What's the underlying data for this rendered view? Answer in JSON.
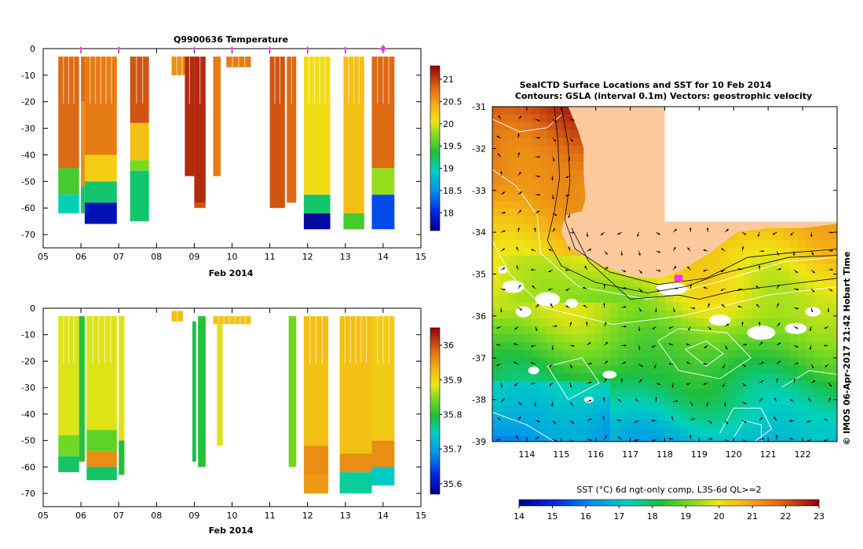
{
  "chart_data": [
    {
      "id": "temp",
      "type": "heatmap",
      "title": "Q9900636  Temperature",
      "xlabel": "Feb 2014",
      "x_ticks": [
        "05",
        "06",
        "07",
        "08",
        "09",
        "10",
        "11",
        "12",
        "13",
        "14",
        "15"
      ],
      "xlim": [
        5,
        15
      ],
      "ylim": [
        -75,
        0
      ],
      "y_ticks": [
        0,
        -10,
        -20,
        -30,
        -40,
        -50,
        -60,
        -70
      ],
      "profile_markers": [
        6,
        7,
        9,
        10,
        11,
        12,
        13,
        14
      ],
      "current_marker": 14,
      "colorbar": {
        "min": 17.6,
        "max": 21.3,
        "ticks": [
          18,
          18.5,
          19,
          19.5,
          20,
          20.5,
          21
        ]
      },
      "profiles": [
        {
          "x0": 5.4,
          "x1": 5.95,
          "segments": [
            [
              -3,
              -45,
              20.8
            ],
            [
              -45,
              -55,
              19.5
            ],
            [
              -55,
              -62,
              19.0
            ]
          ]
        },
        {
          "x0": 6.0,
          "x1": 6.1,
          "segments": [
            [
              -3,
              -20,
              20.8
            ],
            [
              -20,
              -52,
              20.6
            ],
            [
              -52,
              -62,
              19.2
            ]
          ]
        },
        {
          "x0": 6.1,
          "x1": 6.95,
          "segments": [
            [
              -3,
              -40,
              20.7
            ],
            [
              -40,
              -50,
              20.2
            ],
            [
              -50,
              -58,
              19.2
            ],
            [
              -58,
              -66,
              17.8
            ]
          ]
        },
        {
          "x0": 7.3,
          "x1": 7.8,
          "segments": [
            [
              -3,
              -28,
              20.9
            ],
            [
              -28,
              -42,
              20.3
            ],
            [
              -42,
              -46,
              19.7
            ],
            [
              -46,
              -65,
              19.2
            ]
          ]
        },
        {
          "x0": 8.4,
          "x1": 8.95,
          "segments": [
            [
              -3,
              -10,
              20.6
            ]
          ]
        },
        {
          "x0": 8.75,
          "x1": 9.0,
          "segments": [
            [
              -3,
              -48,
              21.1
            ]
          ]
        },
        {
          "x0": 9.0,
          "x1": 9.3,
          "segments": [
            [
              -3,
              -58,
              21.1
            ],
            [
              -58,
              -60,
              20.9
            ]
          ]
        },
        {
          "x0": 9.5,
          "x1": 9.7,
          "segments": [
            [
              -3,
              -48,
              20.7
            ]
          ]
        },
        {
          "x0": 9.85,
          "x1": 10.5,
          "segments": [
            [
              -3,
              -7,
              20.7
            ]
          ]
        },
        {
          "x0": 11.0,
          "x1": 11.4,
          "segments": [
            [
              -3,
              -60,
              20.9
            ]
          ]
        },
        {
          "x0": 11.45,
          "x1": 11.7,
          "segments": [
            [
              -3,
              -58,
              20.8
            ]
          ]
        },
        {
          "x0": 11.9,
          "x1": 12.6,
          "segments": [
            [
              -3,
              -55,
              20.1
            ],
            [
              -55,
              -62,
              19.2
            ],
            [
              -62,
              -68,
              17.7
            ]
          ]
        },
        {
          "x0": 12.95,
          "x1": 13.5,
          "segments": [
            [
              -3,
              -62,
              20.3
            ],
            [
              -62,
              -68,
              19.5
            ]
          ]
        },
        {
          "x0": 13.7,
          "x1": 14.3,
          "segments": [
            [
              -3,
              -45,
              20.8
            ],
            [
              -45,
              -55,
              19.8
            ],
            [
              -55,
              -68,
              18.2
            ]
          ]
        }
      ]
    },
    {
      "id": "sal",
      "type": "heatmap",
      "title": "",
      "xlabel": "Feb 2014",
      "x_ticks": [
        "05",
        "06",
        "07",
        "08",
        "09",
        "10",
        "11",
        "12",
        "13",
        "14",
        "15"
      ],
      "xlim": [
        5,
        15
      ],
      "ylim": [
        -75,
        0
      ],
      "y_ticks": [
        0,
        -10,
        -20,
        -30,
        -40,
        -50,
        -60,
        -70
      ],
      "colorbar": {
        "min": 35.57,
        "max": 36.05,
        "ticks": [
          35.6,
          35.7,
          35.8,
          35.9,
          36
        ]
      },
      "profiles": [
        {
          "x0": 5.4,
          "x1": 5.95,
          "segments": [
            [
              -3,
              -48,
              35.88
            ],
            [
              -48,
              -56,
              35.84
            ],
            [
              -56,
              -62,
              35.78
            ]
          ]
        },
        {
          "x0": 5.95,
          "x1": 6.1,
          "segments": [
            [
              -3,
              -58,
              35.8
            ]
          ]
        },
        {
          "x0": 6.15,
          "x1": 6.95,
          "segments": [
            [
              -3,
              -46,
              35.88
            ],
            [
              -46,
              -54,
              35.83
            ],
            [
              -54,
              -60,
              35.96
            ],
            [
              -60,
              -65,
              35.78
            ]
          ]
        },
        {
          "x0": 7.0,
          "x1": 7.15,
          "segments": [
            [
              -3,
              -50,
              35.88
            ],
            [
              -50,
              -63,
              35.8
            ]
          ]
        },
        {
          "x0": 8.4,
          "x1": 8.7,
          "segments": [
            [
              -1,
              -5,
              35.92
            ]
          ]
        },
        {
          "x0": 8.95,
          "x1": 9.05,
          "segments": [
            [
              -5,
              -58,
              35.79
            ]
          ]
        },
        {
          "x0": 9.1,
          "x1": 9.3,
          "segments": [
            [
              -3,
              -60,
              35.8
            ]
          ]
        },
        {
          "x0": 9.5,
          "x1": 10.5,
          "segments": [
            [
              -3,
              -6,
              35.92
            ]
          ]
        },
        {
          "x0": 9.6,
          "x1": 9.75,
          "segments": [
            [
              -6,
              -52,
              35.88
            ]
          ]
        },
        {
          "x0": 11.5,
          "x1": 11.7,
          "segments": [
            [
              -3,
              -60,
              35.84
            ]
          ]
        },
        {
          "x0": 11.9,
          "x1": 12.55,
          "segments": [
            [
              -3,
              -52,
              35.92
            ],
            [
              -52,
              -63,
              35.96
            ],
            [
              -63,
              -70,
              35.95
            ]
          ]
        },
        {
          "x0": 12.85,
          "x1": 13.7,
          "segments": [
            [
              -3,
              -55,
              35.92
            ],
            [
              -55,
              -62,
              35.96
            ],
            [
              -62,
              -70,
              35.76
            ]
          ]
        },
        {
          "x0": 13.7,
          "x1": 14.3,
          "segments": [
            [
              -3,
              -50,
              35.91
            ],
            [
              -50,
              -60,
              35.96
            ],
            [
              -60,
              -67,
              35.74
            ]
          ]
        }
      ]
    },
    {
      "id": "map",
      "type": "heatmap",
      "title": "SealCTD Surface Locations and SST for 10 Feb 2014",
      "subtitle": "Contours: GSLA (interval 0.1m) Vectors: geostrophic velocity",
      "x_ticks": [
        "114",
        "115",
        "116",
        "117",
        "118",
        "119",
        "120",
        "121",
        "122"
      ],
      "xlim": [
        113,
        123
      ],
      "y_ticks": [
        "-31",
        "-32",
        "-33",
        "-34",
        "-35",
        "-36",
        "-37",
        "-38",
        "-39"
      ],
      "ylim": [
        -39,
        -31
      ],
      "colorbar_label": "SST (°C) 6d ngt-only comp, L3S-6d QL>=2",
      "colorbar": {
        "min": 14,
        "max": 23,
        "ticks": [
          "14",
          "15",
          "16",
          "17",
          "18",
          "19",
          "20",
          "21",
          "22",
          "23"
        ]
      },
      "marker_lon": 118.4,
      "marker_lat": -35.1,
      "side_label": "© IMOS 06-Apr-2017 21:42 Hobart Time"
    }
  ],
  "colors": {
    "land": "#fbc99c",
    "marker": "#ff33ff"
  }
}
